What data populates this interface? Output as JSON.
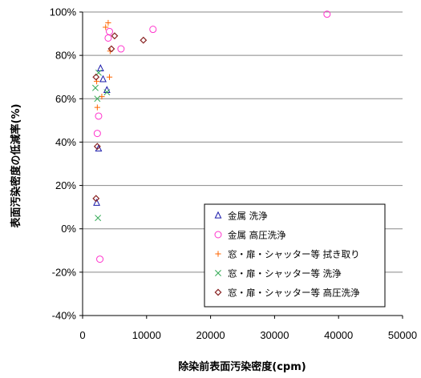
{
  "chart_data": {
    "type": "scatter",
    "title": "",
    "xlabel": "除染前表面汚染密度(cpm)",
    "ylabel": "表面汚染密度の低減率(%)",
    "xlim": [
      0,
      50000
    ],
    "ylim": [
      -40,
      100
    ],
    "x_ticks": [
      "0",
      "10000",
      "20000",
      "30000",
      "40000",
      "50000"
    ],
    "y_ticks": [
      "-40%",
      "-20%",
      "0%",
      "20%",
      "40%",
      "60%",
      "80%",
      "100%"
    ],
    "grid": "horizontal",
    "legend_position": "bottom-right",
    "series": [
      {
        "name": "金属 洗浄",
        "marker": "triangle",
        "color": "#1a1aaa",
        "points": [
          [
            2800,
            74
          ],
          [
            3200,
            69
          ],
          [
            3800,
            64
          ],
          [
            2500,
            37
          ],
          [
            2200,
            12
          ]
        ]
      },
      {
        "name": "金属 高圧洗浄",
        "marker": "circle",
        "color": "#ff33cc",
        "points": [
          [
            38200,
            99
          ],
          [
            11000,
            92
          ],
          [
            4200,
            91
          ],
          [
            4000,
            88
          ],
          [
            6000,
            83
          ],
          [
            2300,
            44
          ],
          [
            2500,
            52
          ],
          [
            2700,
            -14
          ]
        ]
      },
      {
        "name": "窓・扉・シャッター等 拭き取り",
        "marker": "plus",
        "color": "#ff6600",
        "points": [
          [
            4000,
            95
          ],
          [
            3600,
            93
          ],
          [
            4300,
            82
          ],
          [
            4200,
            70
          ],
          [
            3000,
            61
          ],
          [
            2300,
            56
          ],
          [
            2200,
            68
          ]
        ]
      },
      {
        "name": "窓・扉・シャッター等 洗浄",
        "marker": "x",
        "color": "#33aa55",
        "points": [
          [
            2500,
            72
          ],
          [
            2000,
            65
          ],
          [
            2300,
            60
          ],
          [
            3800,
            63
          ],
          [
            2400,
            5
          ]
        ]
      },
      {
        "name": "窓・扉・シャッター等 高圧洗浄",
        "marker": "diamond",
        "color": "#882222",
        "points": [
          [
            5000,
            89
          ],
          [
            9500,
            87
          ],
          [
            4500,
            83
          ],
          [
            2100,
            70
          ],
          [
            2300,
            38
          ],
          [
            2100,
            14
          ]
        ]
      }
    ]
  }
}
